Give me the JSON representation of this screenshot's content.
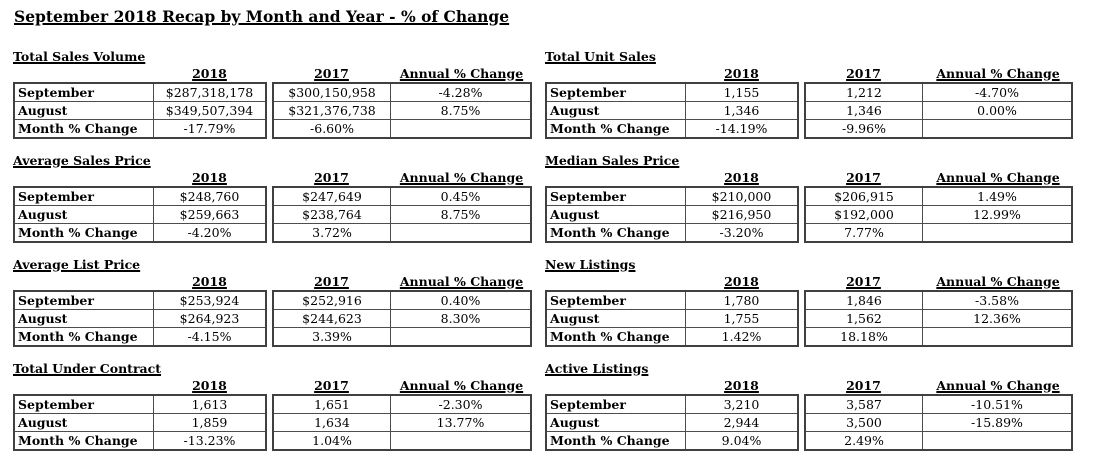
{
  "page": {
    "title": "September 2018 Recap by Month and Year - % of Change"
  },
  "column_headers": {
    "y2018": "2018",
    "y2017": "2017",
    "annual": "Annual % Change"
  },
  "tables": [
    {
      "title": "Total Sales Volume",
      "position": "left",
      "rows": [
        {
          "label": "September",
          "y2018": "$287,318,178",
          "y2017": "$300,150,958",
          "annual": "-4.28%"
        },
        {
          "label": "August",
          "y2018": "$349,507,394",
          "y2017": "$321,376,738",
          "annual": "8.75%"
        },
        {
          "label": "Month % Change",
          "y2018": "-17.79%",
          "y2017": "-6.60%",
          "annual": ""
        }
      ]
    },
    {
      "title": "Total Unit Sales",
      "position": "right",
      "rows": [
        {
          "label": "September",
          "y2018": "1,155",
          "y2017": "1,212",
          "annual": "-4.70%"
        },
        {
          "label": "August",
          "y2018": "1,346",
          "y2017": "1,346",
          "annual": "0.00%"
        },
        {
          "label": "Month % Change",
          "y2018": "-14.19%",
          "y2017": "-9.96%",
          "annual": ""
        }
      ]
    },
    {
      "title": "Average Sales Price",
      "position": "left",
      "rows": [
        {
          "label": "September",
          "y2018": "$248,760",
          "y2017": "$247,649",
          "annual": "0.45%"
        },
        {
          "label": "August",
          "y2018": "$259,663",
          "y2017": "$238,764",
          "annual": "8.75%"
        },
        {
          "label": "Month % Change",
          "y2018": "-4.20%",
          "y2017": "3.72%",
          "annual": ""
        }
      ]
    },
    {
      "title": "Median Sales Price",
      "position": "right",
      "rows": [
        {
          "label": "September",
          "y2018": "$210,000",
          "y2017": "$206,915",
          "annual": "1.49%"
        },
        {
          "label": "August",
          "y2018": "$216,950",
          "y2017": "$192,000",
          "annual": "12.99%"
        },
        {
          "label": "Month % Change",
          "y2018": "-3.20%",
          "y2017": "7.77%",
          "annual": ""
        }
      ]
    },
    {
      "title": "Average List Price",
      "position": "left",
      "rows": [
        {
          "label": "September",
          "y2018": "$253,924",
          "y2017": "$252,916",
          "annual": "0.40%"
        },
        {
          "label": "August",
          "y2018": "$264,923",
          "y2017": "$244,623",
          "annual": "8.30%"
        },
        {
          "label": "Month % Change",
          "y2018": "-4.15%",
          "y2017": "3.39%",
          "annual": ""
        }
      ]
    },
    {
      "title": "New Listings",
      "position": "right",
      "rows": [
        {
          "label": "September",
          "y2018": "1,780",
          "y2017": "1,846",
          "annual": "-3.58%"
        },
        {
          "label": "August",
          "y2018": "1,755",
          "y2017": "1,562",
          "annual": "12.36%"
        },
        {
          "label": "Month % Change",
          "y2018": "1.42%",
          "y2017": "18.18%",
          "annual": ""
        }
      ]
    },
    {
      "title": "Total Under Contract",
      "position": "left",
      "rows": [
        {
          "label": "September",
          "y2018": "1,613",
          "y2017": "1,651",
          "annual": "-2.30%"
        },
        {
          "label": "August",
          "y2018": "1,859",
          "y2017": "1,634",
          "annual": "13.77%"
        },
        {
          "label": "Month % Change",
          "y2018": "-13.23%",
          "y2017": "1.04%",
          "annual": ""
        }
      ]
    },
    {
      "title": "Active Listings",
      "position": "right",
      "rows": [
        {
          "label": "September",
          "y2018": "3,210",
          "y2017": "3,587",
          "annual": "-10.51%"
        },
        {
          "label": "August",
          "y2018": "2,944",
          "y2017": "3,500",
          "annual": "-15.89%"
        },
        {
          "label": "Month % Change",
          "y2018": "9.04%",
          "y2017": "2.49%",
          "annual": ""
        }
      ]
    }
  ],
  "colors": {
    "background": "#ffffff",
    "text": "#000000",
    "border": "#404040"
  }
}
